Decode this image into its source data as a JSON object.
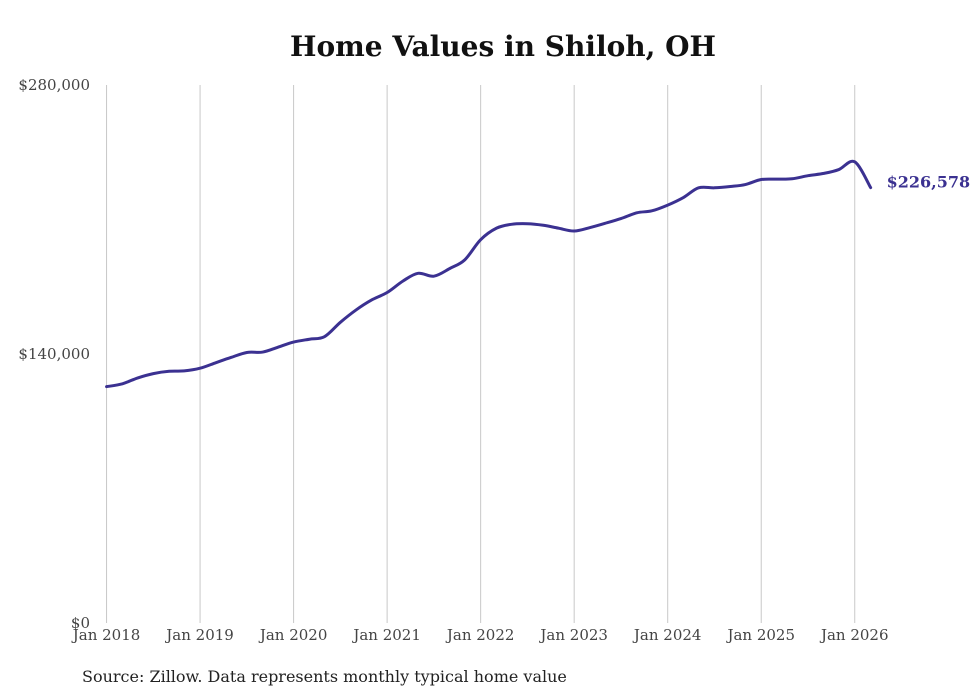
{
  "chart_data": {
    "type": "line",
    "title": "Home Values in Shiloh, OH",
    "xlabel": "",
    "ylabel": "",
    "ylim": [
      0,
      280000
    ],
    "y_ticks": [
      0,
      140000,
      280000
    ],
    "y_tick_labels": [
      "$0",
      "$140,000",
      "$280,000"
    ],
    "x_range": [
      2017.93,
      2026.27
    ],
    "x_ticks": [
      2018,
      2019,
      2020,
      2021,
      2022,
      2023,
      2024,
      2025,
      2026
    ],
    "x_tick_labels": [
      "Jan 2018",
      "Jan 2019",
      "Jan 2020",
      "Jan 2021",
      "Jan 2022",
      "Jan 2023",
      "Jan 2024",
      "Jan 2025",
      "Jan 2026"
    ],
    "grid": "vertical",
    "end_label": "$226,578",
    "colors": {
      "line": "#3b3191",
      "grid": "#c8c8c8",
      "text": "#444444"
    },
    "series": [
      {
        "name": "Typical home value",
        "x": [
          2018.0,
          2018.17,
          2018.33,
          2018.5,
          2018.67,
          2018.83,
          2019.0,
          2019.17,
          2019.33,
          2019.5,
          2019.67,
          2019.83,
          2020.0,
          2020.17,
          2020.33,
          2020.5,
          2020.67,
          2020.83,
          2021.0,
          2021.17,
          2021.33,
          2021.5,
          2021.67,
          2021.83,
          2022.0,
          2022.17,
          2022.33,
          2022.5,
          2022.67,
          2022.83,
          2023.0,
          2023.17,
          2023.33,
          2023.5,
          2023.67,
          2023.83,
          2024.0,
          2024.17,
          2024.33,
          2024.5,
          2024.67,
          2024.83,
          2025.0,
          2025.17,
          2025.33,
          2025.5,
          2025.67,
          2025.83,
          2026.0,
          2026.17
        ],
        "values": [
          123000,
          124500,
          127500,
          129800,
          131000,
          131200,
          132600,
          135500,
          138200,
          140800,
          141000,
          143500,
          146200,
          147700,
          149000,
          156500,
          163000,
          168000,
          172000,
          178000,
          182000,
          180500,
          184500,
          189000,
          199500,
          205500,
          207500,
          207800,
          207000,
          205500,
          204000,
          205800,
          208000,
          210500,
          213500,
          214500,
          217500,
          221500,
          226500,
          226500,
          227200,
          228200,
          230800,
          231000,
          231200,
          232800,
          234000,
          236000,
          240000,
          226578
        ]
      }
    ]
  },
  "source": "Source: Zillow. Data represents monthly typical home value"
}
